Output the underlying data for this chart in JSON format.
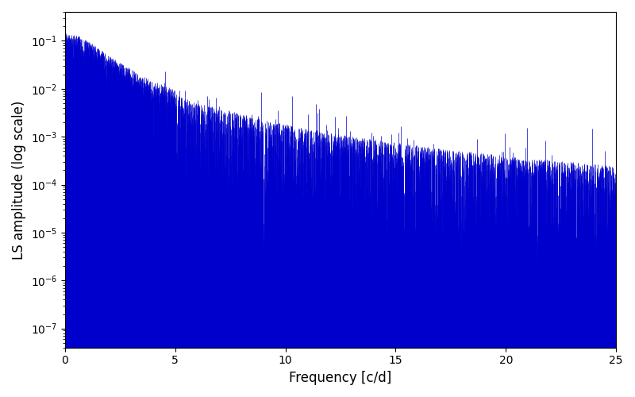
{
  "xlabel": "Frequency [c/d]",
  "ylabel": "LS amplitude (log scale)",
  "line_color": "#0000cc",
  "line_width": 0.5,
  "freq_min": 0.0,
  "freq_max": 25.0,
  "ylim_min": 4e-08,
  "ylim_max": 0.4,
  "n_points": 8000,
  "seed": 123,
  "background_color": "#ffffff",
  "xlabel_fontsize": 12,
  "ylabel_fontsize": 12,
  "tick_fontsize": 10
}
